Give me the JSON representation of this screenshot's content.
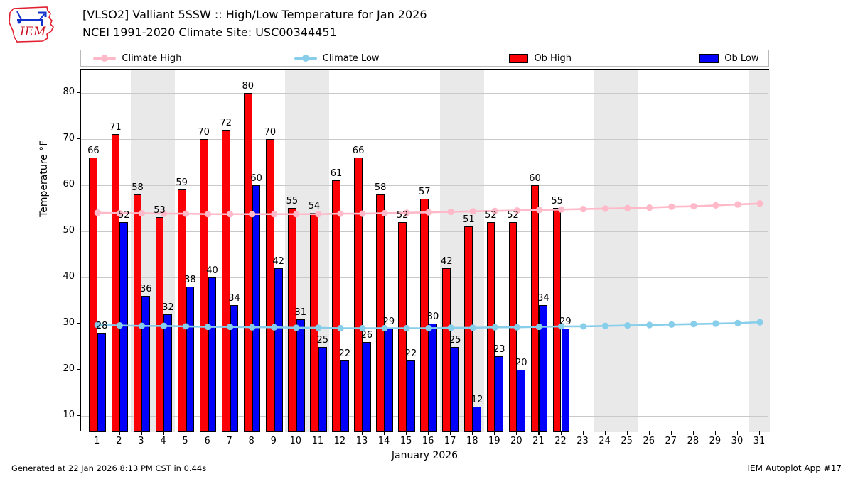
{
  "header": {
    "title_line1": "[VLSO2] Valliant 5SSW :: High/Low Temperature for Jan 2026",
    "title_line2": "NCEI 1991-2020 Climate Site: USC00344451",
    "logo_text": "IEM"
  },
  "legend": {
    "items": [
      {
        "label": "Climate High",
        "type": "line",
        "color": "#ffb9c8"
      },
      {
        "label": "Climate Low",
        "type": "line",
        "color": "#87ceeb"
      },
      {
        "label": "Ob High",
        "type": "patch",
        "color": "#fb0007"
      },
      {
        "label": "Ob Low",
        "type": "patch",
        "color": "#0000fb"
      }
    ]
  },
  "chart_data": {
    "type": "bar",
    "title": "[VLSO2] Valliant 5SSW :: High/Low Temperature for Jan 2026",
    "subtitle": "NCEI 1991-2020 Climate Site: USC00344451",
    "xlabel": "January 2026",
    "ylabel": "Temperature °F",
    "xlim": [
      0.25,
      31.45
    ],
    "ylim": [
      6.5,
      85
    ],
    "yticks": [
      10,
      20,
      30,
      40,
      50,
      60,
      70,
      80
    ],
    "grid": "horizontal",
    "legend_position": "top",
    "weekend_band_color": "#e9e9e9",
    "weekend_bands": [
      [
        2.5,
        4.5
      ],
      [
        9.5,
        11.5
      ],
      [
        16.5,
        18.5
      ],
      [
        23.5,
        25.5
      ],
      [
        30.5,
        31.45
      ]
    ],
    "categories": [
      1,
      2,
      3,
      4,
      5,
      6,
      7,
      8,
      9,
      10,
      11,
      12,
      13,
      14,
      15,
      16,
      17,
      18,
      19,
      20,
      21,
      22,
      23,
      24,
      25,
      26,
      27,
      28,
      29,
      30,
      31
    ],
    "series": [
      {
        "name": "Ob High",
        "type": "bar",
        "color": "#fb0007",
        "values": [
          66,
          71,
          58,
          53,
          59,
          70,
          72,
          80,
          70,
          55,
          54,
          61,
          66,
          58,
          52,
          57,
          42,
          51,
          52,
          52,
          60,
          55,
          null,
          null,
          null,
          null,
          null,
          null,
          null,
          null,
          null
        ]
      },
      {
        "name": "Ob Low",
        "type": "bar",
        "color": "#0000fb",
        "values": [
          28,
          52,
          36,
          32,
          38,
          40,
          34,
          60,
          42,
          31,
          25,
          22,
          26,
          29,
          22,
          30,
          25,
          12,
          23,
          20,
          34,
          29,
          null,
          null,
          null,
          null,
          null,
          null,
          null,
          null,
          null
        ]
      },
      {
        "name": "Climate High",
        "type": "line",
        "color": "#ffb9c8",
        "values": [
          54.0,
          53.9,
          53.9,
          53.8,
          53.8,
          53.7,
          53.7,
          53.7,
          53.7,
          53.7,
          53.7,
          53.8,
          53.8,
          53.9,
          54.0,
          54.1,
          54.2,
          54.3,
          54.4,
          54.5,
          54.6,
          54.7,
          54.8,
          54.9,
          55.0,
          55.1,
          55.3,
          55.4,
          55.6,
          55.8,
          56.0
        ]
      },
      {
        "name": "Climate Low",
        "type": "line",
        "color": "#87ceeb",
        "values": [
          29.7,
          29.6,
          29.5,
          29.5,
          29.4,
          29.3,
          29.3,
          29.2,
          29.2,
          29.1,
          29.1,
          29.0,
          29.0,
          29.0,
          29.0,
          29.0,
          29.1,
          29.1,
          29.2,
          29.2,
          29.3,
          29.4,
          29.4,
          29.5,
          29.6,
          29.7,
          29.8,
          29.9,
          30.0,
          30.1,
          30.3
        ]
      }
    ]
  },
  "footer": {
    "left": "Generated at 22 Jan 2026 8:13 PM CST in 0.44s",
    "right": "IEM Autoplot App #17"
  }
}
